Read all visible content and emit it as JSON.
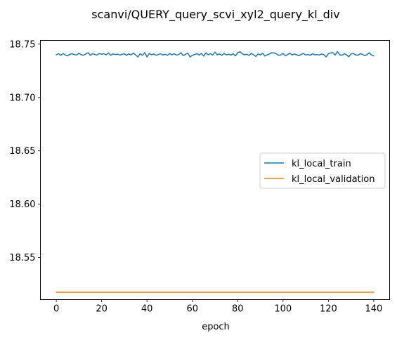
{
  "chart_data": {
    "type": "line",
    "title": "scanvi/QUERY_query_scvi_xyl2_query_kl_div",
    "xlabel": "epoch",
    "ylabel": "",
    "xlim": [
      -7,
      147
    ],
    "ylim": [
      18.5106,
      18.7535
    ],
    "xticks": [
      0,
      20,
      40,
      60,
      80,
      100,
      120,
      140
    ],
    "yticks": [
      18.55,
      18.6,
      18.65,
      18.7,
      18.75
    ],
    "ytick_labels": [
      "18.55",
      "18.60",
      "18.65",
      "18.70",
      "18.75"
    ],
    "grid": false,
    "legend_position": "center-right",
    "series": [
      {
        "name": "kl_local_train",
        "color": "#1f77b4",
        "x": [
          0,
          1,
          2,
          3,
          4,
          5,
          6,
          7,
          8,
          9,
          10,
          11,
          12,
          13,
          14,
          15,
          16,
          17,
          18,
          19,
          20,
          21,
          22,
          23,
          24,
          25,
          26,
          27,
          28,
          29,
          30,
          31,
          32,
          33,
          34,
          35,
          36,
          37,
          38,
          39,
          40,
          41,
          42,
          43,
          44,
          45,
          46,
          47,
          48,
          49,
          50,
          51,
          52,
          53,
          54,
          55,
          56,
          57,
          58,
          59,
          60,
          61,
          62,
          63,
          64,
          65,
          66,
          67,
          68,
          69,
          70,
          71,
          72,
          73,
          74,
          75,
          76,
          77,
          78,
          79,
          80,
          81,
          82,
          83,
          84,
          85,
          86,
          87,
          88,
          89,
          90,
          91,
          92,
          93,
          94,
          95,
          96,
          97,
          98,
          99,
          100,
          101,
          102,
          103,
          104,
          105,
          106,
          107,
          108,
          109,
          110,
          111,
          112,
          113,
          114,
          115,
          116,
          117,
          118,
          119,
          120,
          121,
          122,
          123,
          124,
          125,
          126,
          127,
          128,
          129,
          130,
          131,
          132,
          133,
          134,
          135,
          136,
          137,
          138,
          139,
          140
        ],
        "values": [
          18.74,
          18.741,
          18.7395,
          18.7412,
          18.7398,
          18.739,
          18.7405,
          18.741,
          18.7402,
          18.7398,
          18.7415,
          18.74,
          18.7396,
          18.7408,
          18.742,
          18.7395,
          18.741,
          18.7403,
          18.7398,
          18.7412,
          18.7405,
          18.741,
          18.74,
          18.7418,
          18.7395,
          18.7408,
          18.7402,
          18.7406,
          18.7398,
          18.7404,
          18.741,
          18.7395,
          18.7408,
          18.74,
          18.7415,
          18.7398,
          18.738,
          18.741,
          18.7395,
          18.742,
          18.738,
          18.7412,
          18.74,
          18.7408,
          18.7396,
          18.7402,
          18.741,
          18.7398,
          18.7405,
          18.7395,
          18.7412,
          18.74,
          18.741,
          18.7398,
          18.7402,
          18.742,
          18.7392,
          18.7405,
          18.7415,
          18.738,
          18.7395,
          18.7402,
          18.741,
          18.7398,
          18.7412,
          18.7388,
          18.7418,
          18.74,
          18.741,
          18.7398,
          18.7425,
          18.74,
          18.7408,
          18.7395,
          18.7412,
          18.74,
          18.7405,
          18.7398,
          18.741,
          18.739,
          18.742,
          18.7428,
          18.741,
          18.74,
          18.7405,
          18.7395,
          18.7412,
          18.74,
          18.7385,
          18.7408,
          18.7398,
          18.7415,
          18.7388,
          18.74,
          18.7408,
          18.742,
          18.7418,
          18.741,
          18.7395,
          18.74,
          18.7412,
          18.739,
          18.7402,
          18.7415,
          18.7398,
          18.7408,
          18.74,
          18.7392,
          18.7405,
          18.7412,
          18.7398,
          18.7402,
          18.7395,
          18.741,
          18.74,
          18.7402,
          18.7398,
          18.7408,
          18.74,
          18.738,
          18.741,
          18.7418,
          18.742,
          18.7398,
          18.743,
          18.74,
          18.7395,
          18.741,
          18.74,
          18.7382,
          18.7408,
          18.7412,
          18.74,
          18.7395,
          18.741,
          18.7405,
          18.7392,
          18.74,
          18.742,
          18.7398,
          18.739
        ]
      },
      {
        "name": "kl_local_validation",
        "color": "#ff7f0e",
        "x": [
          0,
          140
        ],
        "values": [
          18.5175,
          18.5175
        ]
      }
    ]
  }
}
